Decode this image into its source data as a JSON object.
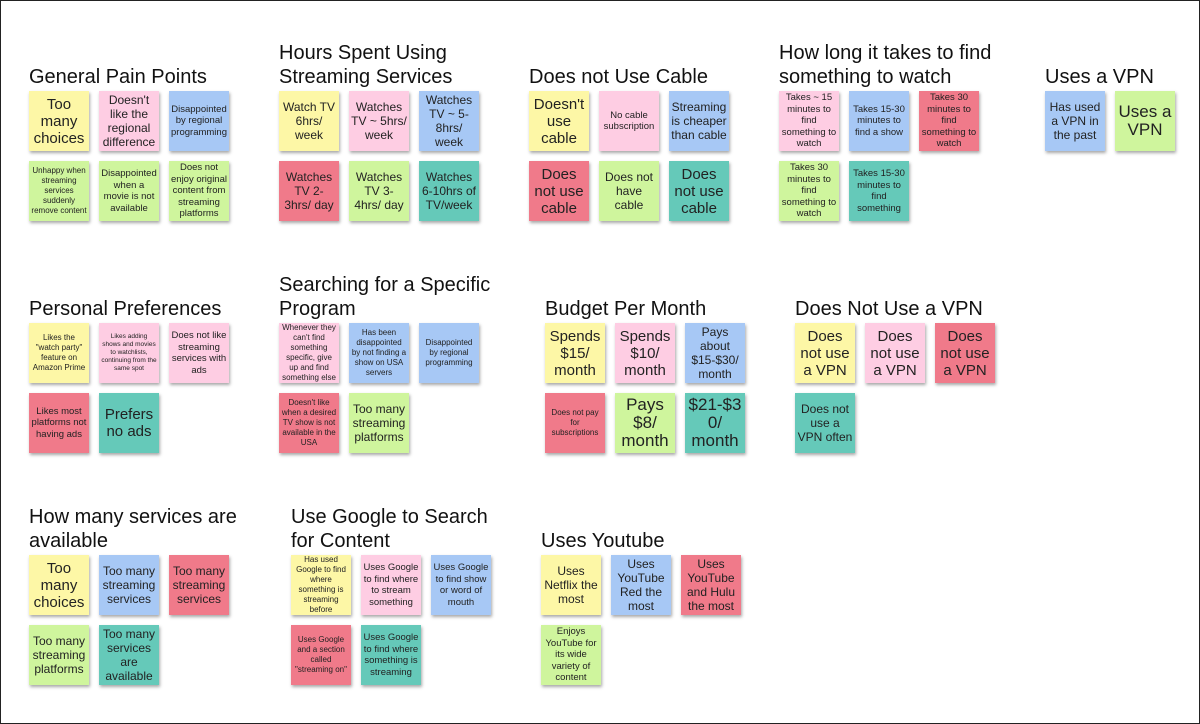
{
  "colors": {
    "yellow": "#fdf7a6",
    "pink": "#fecde3",
    "blue": "#a7c8f5",
    "green": "#cff59d",
    "red": "#f07a8a",
    "teal": "#65c9b9"
  },
  "groups": [
    {
      "title": "General Pain Points",
      "notes": [
        {
          "text": "Too many choices",
          "color": "yellow"
        },
        {
          "text": "Doesn't like the regional difference",
          "color": "pink"
        },
        {
          "text": "Disappointed by regional programming",
          "color": "blue"
        },
        {
          "text": "Unhappy when streaming services suddenly remove content",
          "color": "green"
        },
        {
          "text": "Disappointed when a movie is not available",
          "color": "green"
        },
        {
          "text": "Does not enjoy original content from streaming platforms",
          "color": "green"
        }
      ]
    },
    {
      "title": "Hours Spent Using\nStreaming Services",
      "notes": [
        {
          "text": "Watch TV 6hrs/ week",
          "color": "yellow"
        },
        {
          "text": "Watches TV ~ 5hrs/ week",
          "color": "pink"
        },
        {
          "text": "Watches TV ~ 5-8hrs/ week",
          "color": "blue"
        },
        {
          "text": "Watches TV 2-3hrs/ day",
          "color": "red"
        },
        {
          "text": "Watches TV 3-4hrs/ day",
          "color": "green"
        },
        {
          "text": "Watches 6-10hrs of TV/week",
          "color": "teal"
        }
      ]
    },
    {
      "title": "Does not Use Cable",
      "notes": [
        {
          "text": "Doesn't use cable",
          "color": "yellow"
        },
        {
          "text": "No cable subscription",
          "color": "pink"
        },
        {
          "text": "Streaming is cheaper than cable",
          "color": "blue"
        },
        {
          "text": "Does not use cable",
          "color": "red"
        },
        {
          "text": "Does not have cable",
          "color": "green"
        },
        {
          "text": "Does not use cable",
          "color": "teal"
        }
      ]
    },
    {
      "title": "How long it takes to find\nsomething to watch",
      "notes": [
        {
          "text": "Takes ~ 15 minutes to find something to watch",
          "color": "pink"
        },
        {
          "text": "Takes 15-30 minutes to find a show",
          "color": "blue"
        },
        {
          "text": "Takes 30 minutes to find something to watch",
          "color": "red"
        },
        {
          "text": "Takes 30 minutes to find something to watch",
          "color": "green"
        },
        {
          "text": "Takes 15-30 minutes to find something",
          "color": "teal"
        }
      ]
    },
    {
      "title": "Uses a VPN",
      "notes": [
        {
          "text": "Has used a VPN in the past",
          "color": "blue"
        },
        {
          "text": "Uses a VPN",
          "color": "green"
        }
      ]
    },
    {
      "title": "Personal Preferences",
      "notes": [
        {
          "text": "Likes the \"watch party\" feature on Amazon Prime",
          "color": "yellow"
        },
        {
          "text": "Likes adding shows and movies to watchlists, continuing from the same spot",
          "color": "pink"
        },
        {
          "text": "Does not like streaming services with ads",
          "color": "pink"
        },
        {
          "text": "Likes most platforms not having ads",
          "color": "red"
        },
        {
          "text": "Prefers no ads",
          "color": "teal"
        }
      ]
    },
    {
      "title": "Searching for a Specific\nProgram",
      "notes": [
        {
          "text": "Whenever they can't find something specific, give up and find something else",
          "color": "pink"
        },
        {
          "text": "Has been disappointed by not finding a show on USA servers",
          "color": "blue"
        },
        {
          "text": "Disappointed by regional programming",
          "color": "blue"
        },
        {
          "text": "Doesn't like when a desired TV show is not available in the USA",
          "color": "red"
        },
        {
          "text": "Too many streaming platforms",
          "color": "green"
        }
      ]
    },
    {
      "title": "Budget Per Month",
      "notes": [
        {
          "text": "Spends $15/ month",
          "color": "yellow"
        },
        {
          "text": "Spends $10/ month",
          "color": "pink"
        },
        {
          "text": "Pays about $15-$30/ month",
          "color": "blue"
        },
        {
          "text": "Does not pay for subscriptions",
          "color": "red"
        },
        {
          "text": "Pays $8/ month",
          "color": "green"
        },
        {
          "text": "$21-$30/ month",
          "color": "teal"
        }
      ]
    },
    {
      "title": "Does Not Use a VPN",
      "notes": [
        {
          "text": "Does not use a VPN",
          "color": "yellow"
        },
        {
          "text": "Does not use a VPN",
          "color": "pink"
        },
        {
          "text": "Does not use a VPN",
          "color": "red"
        },
        {
          "text": "Does not use a VPN often",
          "color": "teal"
        }
      ]
    },
    {
      "title": "How many services are\navailable",
      "notes": [
        {
          "text": "Too many choices",
          "color": "yellow"
        },
        {
          "text": "Too many streaming services",
          "color": "blue"
        },
        {
          "text": "Too many streaming services",
          "color": "red"
        },
        {
          "text": "Too many streaming platforms",
          "color": "green"
        },
        {
          "text": "Too many services are available",
          "color": "teal"
        }
      ]
    },
    {
      "title": "Use Google to Search\nfor Content",
      "notes": [
        {
          "text": "Has used Google to find where something is streaming before",
          "color": "yellow"
        },
        {
          "text": "Uses Google to find where to stream something",
          "color": "pink"
        },
        {
          "text": "Uses Google to find show or word of mouth",
          "color": "blue"
        },
        {
          "text": "Uses Google and a section called \"streaming on\"",
          "color": "red"
        },
        {
          "text": "Uses Google to find where something is streaming",
          "color": "teal"
        }
      ]
    },
    {
      "title": "Uses Youtube",
      "notes": [
        {
          "text": "Uses Netflix the most",
          "color": "yellow"
        },
        {
          "text": "Uses YouTube Red the most",
          "color": "blue"
        },
        {
          "text": "Uses YouTube and Hulu the most",
          "color": "red"
        },
        {
          "text": "Enjoys YouTube for its wide variety of content",
          "color": "green"
        }
      ]
    }
  ]
}
